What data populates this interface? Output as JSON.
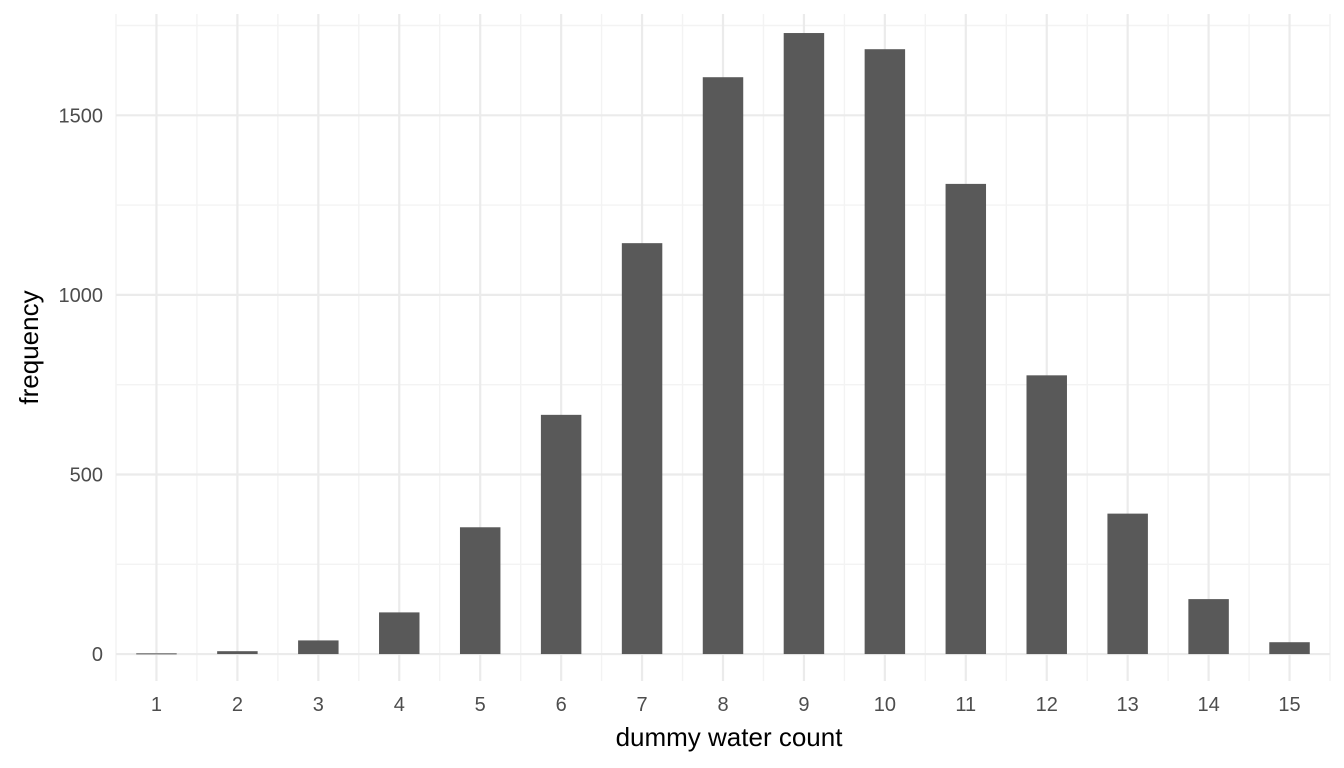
{
  "chart_data": {
    "type": "bar",
    "title": "",
    "xlabel": "dummy water count",
    "ylabel": "frequency",
    "categories": [
      1,
      2,
      3,
      4,
      5,
      6,
      7,
      8,
      9,
      10,
      11,
      12,
      13,
      14,
      15
    ],
    "values": [
      2,
      8,
      38,
      116,
      353,
      666,
      1144,
      1606,
      1729,
      1684,
      1309,
      776,
      391,
      153,
      33
    ],
    "xlim": [
      0.5,
      15.5
    ],
    "ylim": [
      -75,
      1782
    ],
    "y_ticks": [
      0,
      500,
      1000,
      1500
    ],
    "y_tick_labels": [
      "0",
      "500",
      "1000",
      "1500"
    ],
    "x_tick_labels": [
      "1",
      "2",
      "3",
      "4",
      "5",
      "6",
      "7",
      "8",
      "9",
      "10",
      "11",
      "12",
      "13",
      "14",
      "15"
    ],
    "grid": true,
    "legend": "none",
    "colors": {
      "bar": "#595959",
      "background": "#ffffff",
      "grid_major": "#ebebeb",
      "grid_minor": "#f3f3f3"
    }
  }
}
